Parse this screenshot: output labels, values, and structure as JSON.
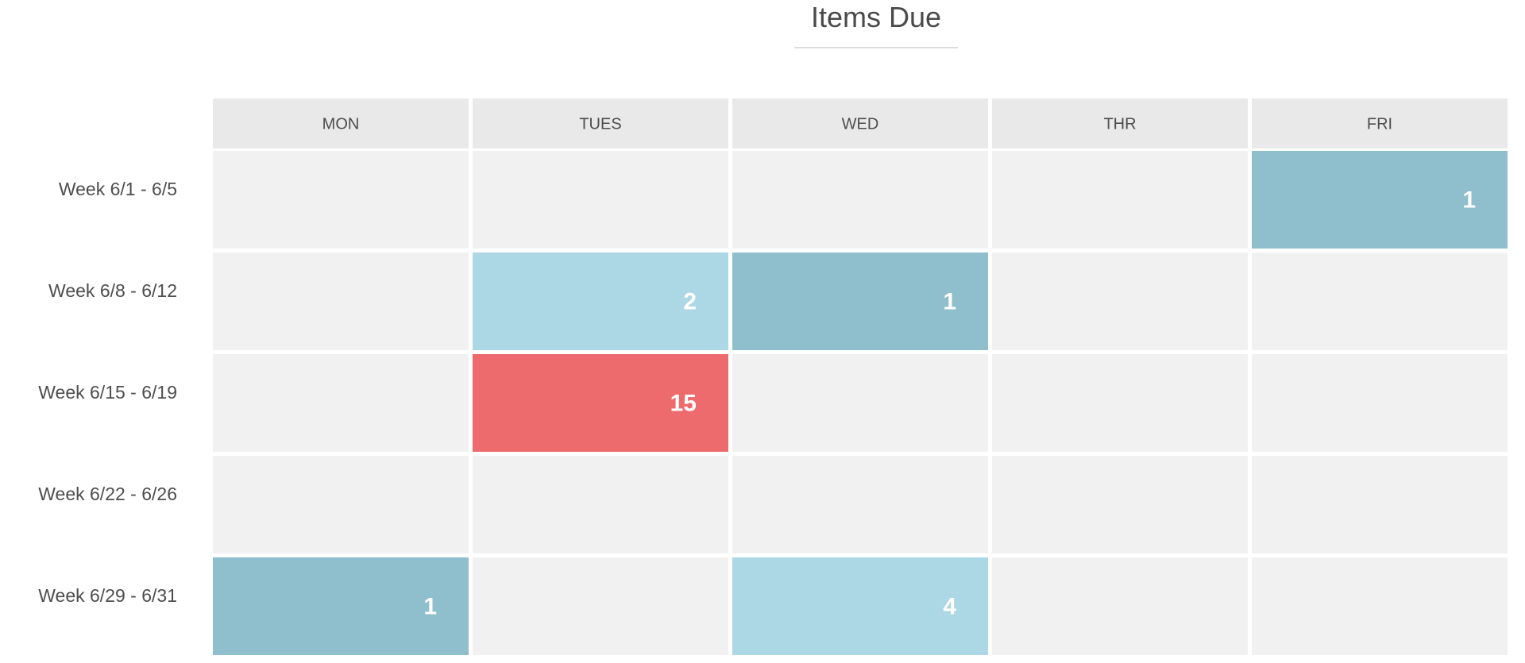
{
  "chart_data": {
    "type": "heatmap",
    "title": "Items Due",
    "columns": [
      "MON",
      "TUES",
      "WED",
      "THR",
      "FRI"
    ],
    "rows": [
      "Week 6/1 - 6/5",
      "Week 6/8 - 6/12",
      "Week 6/15 - 6/19",
      "Week 6/22 - 6/26",
      "Week 6/29 - 6/31"
    ],
    "values": [
      [
        null,
        null,
        null,
        null,
        1
      ],
      [
        null,
        2,
        1,
        null,
        null
      ],
      [
        null,
        15,
        null,
        null,
        null
      ],
      [
        null,
        null,
        null,
        null,
        null
      ],
      [
        1,
        null,
        4,
        null,
        null
      ]
    ],
    "grid": true,
    "legend": "none"
  },
  "colors": {
    "empty_cell": "#f1f1f1",
    "header_cell": "#e9e9e9",
    "value_1": "#8fbfcc",
    "value_low": "#acd7e4",
    "value_high": "#ee6b6d",
    "value_text": "#ffffff",
    "label_text": "#4d4d4d"
  }
}
